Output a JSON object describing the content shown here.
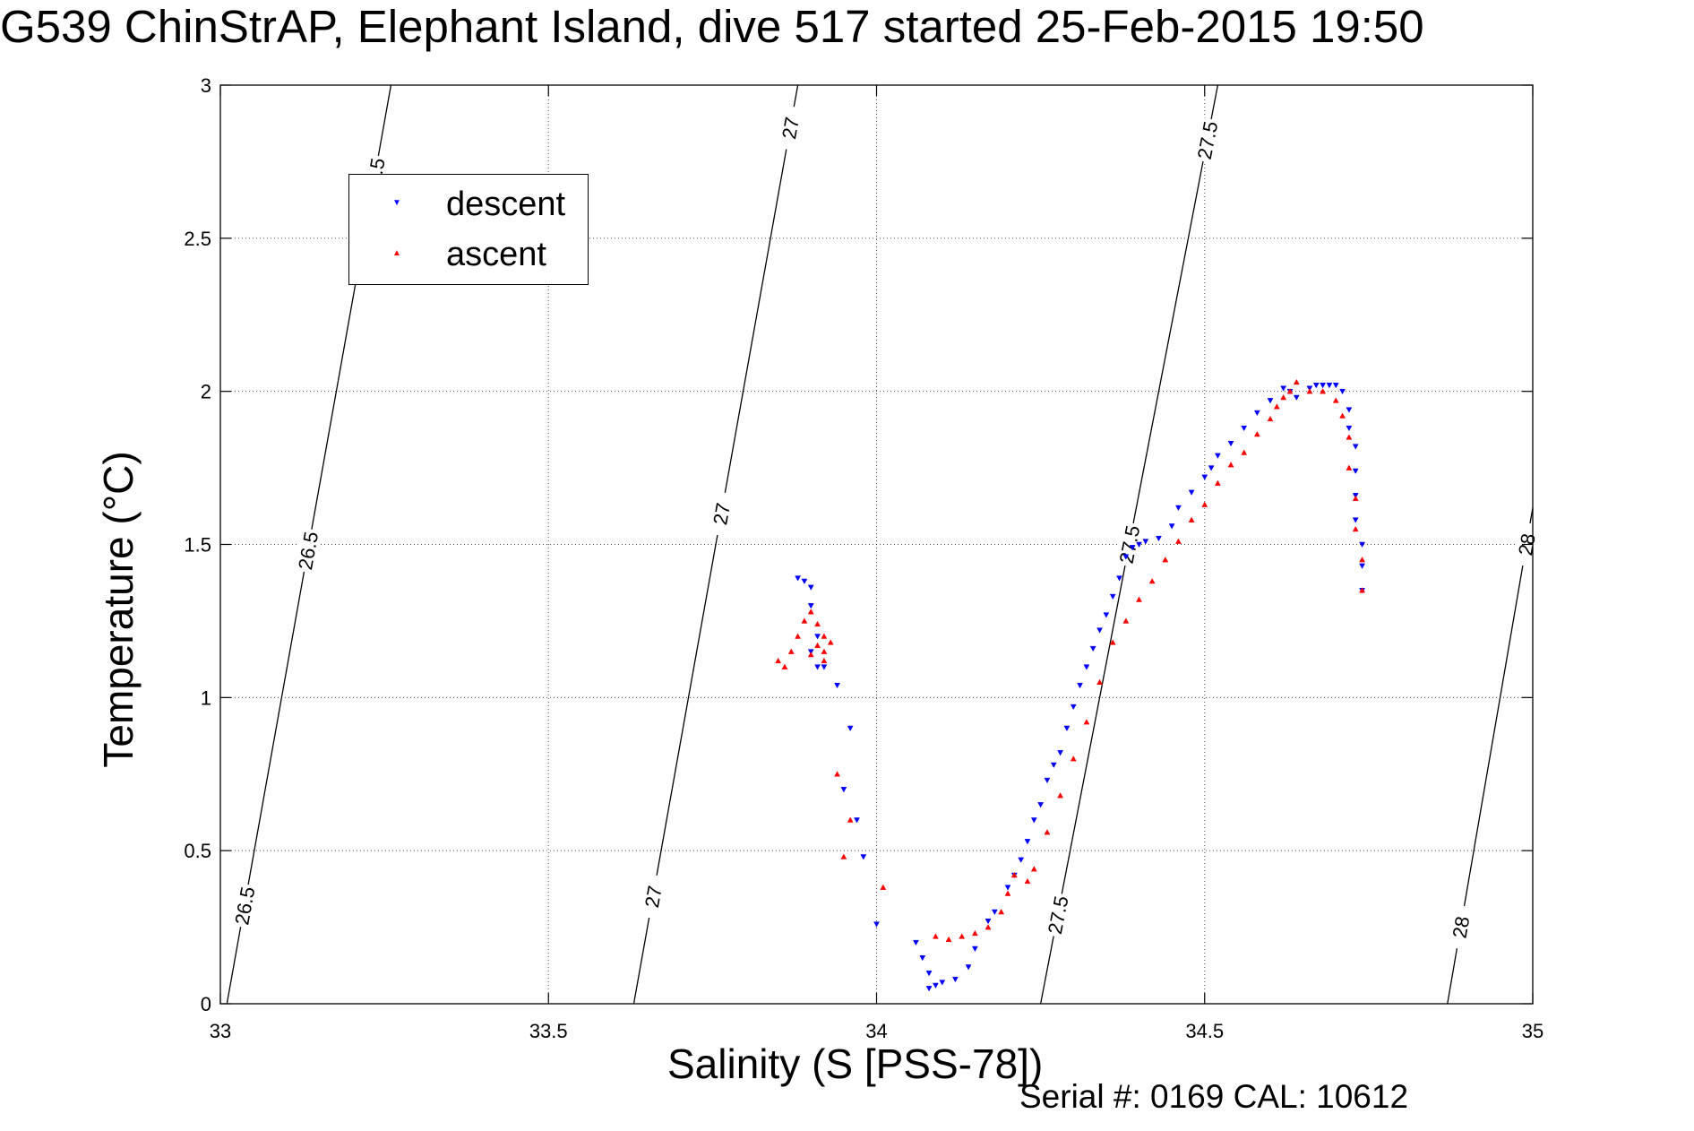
{
  "title": "G539 ChinStrAP, Elephant Island, dive 517 started 25-Feb-2015 19:50",
  "footer": "Serial #: 0169 CAL: 10612",
  "colors": {
    "descent": "#0000ff",
    "ascent": "#ff0000",
    "axis": "#000000",
    "grid": "#000000"
  },
  "chart_data": {
    "type": "scatter",
    "title": "G539 ChinStrAP, Elephant Island, dive 517 started 25-Feb-2015 19:50",
    "xlabel": "Salinity (S [PSS-78])",
    "ylabel": "Temperature (°C)",
    "xlim": [
      33,
      35
    ],
    "ylim": [
      0,
      3
    ],
    "xticks": [
      33,
      33.5,
      34,
      34.5,
      35
    ],
    "xtick_labels": [
      "33",
      "33.5",
      "34",
      "34.5",
      "35"
    ],
    "yticks": [
      0,
      0.5,
      1,
      1.5,
      2,
      2.5,
      3
    ],
    "ytick_labels": [
      "0",
      "0.5",
      "1",
      "1.5",
      "2",
      "2.5",
      "3"
    ],
    "grid": true,
    "legend_position": "top-left",
    "series": [
      {
        "name": "descent",
        "marker": "triangle-down",
        "x": [
          33.88,
          33.89,
          33.9,
          33.9,
          33.91,
          33.9,
          33.91,
          33.92,
          33.94,
          33.96,
          33.95,
          33.97,
          33.98,
          34.0,
          34.06,
          34.07,
          34.08,
          34.08,
          34.09,
          34.1,
          34.12,
          34.14,
          34.15,
          34.17,
          34.18,
          34.2,
          34.21,
          34.22,
          34.23,
          34.24,
          34.25,
          34.26,
          34.27,
          34.28,
          34.29,
          34.3,
          34.31,
          34.32,
          34.33,
          34.34,
          34.35,
          34.36,
          34.37,
          34.38,
          34.39,
          34.4,
          34.41,
          34.43,
          34.45,
          34.46,
          34.48,
          34.5,
          34.51,
          34.52,
          34.54,
          34.56,
          34.58,
          34.6,
          34.62,
          34.63,
          34.64,
          34.66,
          34.67,
          34.68,
          34.69,
          34.7,
          34.71,
          34.72,
          34.72,
          34.73,
          34.73,
          34.73,
          34.73,
          34.74,
          34.74,
          34.74
        ],
        "y": [
          1.39,
          1.38,
          1.36,
          1.3,
          1.2,
          1.15,
          1.1,
          1.1,
          1.04,
          0.9,
          0.7,
          0.6,
          0.48,
          0.26,
          0.2,
          0.15,
          0.1,
          0.05,
          0.06,
          0.07,
          0.08,
          0.12,
          0.18,
          0.27,
          0.3,
          0.38,
          0.42,
          0.47,
          0.53,
          0.6,
          0.65,
          0.73,
          0.78,
          0.82,
          0.9,
          0.97,
          1.04,
          1.1,
          1.16,
          1.22,
          1.27,
          1.33,
          1.39,
          1.46,
          1.49,
          1.5,
          1.51,
          1.52,
          1.56,
          1.62,
          1.67,
          1.72,
          1.75,
          1.79,
          1.83,
          1.88,
          1.93,
          1.97,
          2.01,
          2.0,
          1.98,
          2.01,
          2.02,
          2.02,
          2.02,
          2.02,
          2.0,
          1.94,
          1.88,
          1.82,
          1.74,
          1.66,
          1.58,
          1.5,
          1.43,
          1.35
        ]
      },
      {
        "name": "ascent",
        "marker": "triangle-up",
        "x": [
          33.85,
          33.86,
          33.87,
          33.88,
          33.89,
          33.9,
          33.91,
          33.92,
          33.91,
          33.9,
          33.92,
          33.93,
          33.92,
          33.94,
          33.96,
          33.95,
          34.01,
          34.09,
          34.11,
          34.13,
          34.15,
          34.17,
          34.19,
          34.2,
          34.21,
          34.23,
          34.24,
          34.26,
          34.28,
          34.3,
          34.32,
          34.34,
          34.36,
          34.38,
          34.4,
          34.42,
          34.44,
          34.46,
          34.48,
          34.5,
          34.52,
          34.54,
          34.56,
          34.58,
          34.6,
          34.61,
          34.62,
          34.63,
          34.64,
          34.66,
          34.68,
          34.7,
          34.71,
          34.72,
          34.72,
          34.73,
          34.73,
          34.74,
          34.74
        ],
        "y": [
          1.12,
          1.1,
          1.15,
          1.2,
          1.25,
          1.28,
          1.24,
          1.2,
          1.17,
          1.14,
          1.15,
          1.18,
          1.12,
          0.75,
          0.6,
          0.48,
          0.38,
          0.22,
          0.21,
          0.22,
          0.23,
          0.25,
          0.3,
          0.36,
          0.42,
          0.4,
          0.44,
          0.56,
          0.68,
          0.8,
          0.92,
          1.05,
          1.18,
          1.25,
          1.32,
          1.38,
          1.45,
          1.51,
          1.58,
          1.63,
          1.7,
          1.76,
          1.8,
          1.86,
          1.91,
          1.95,
          1.98,
          2.0,
          2.03,
          2.0,
          2.0,
          1.97,
          1.92,
          1.85,
          1.75,
          1.65,
          1.55,
          1.45,
          1.35
        ]
      }
    ],
    "contours": [
      {
        "label": "26.5",
        "start": [
          33.01,
          0
        ],
        "end": [
          33.26,
          3
        ],
        "label_positions": [
          0.32,
          1.48,
          2.7
        ]
      },
      {
        "label": "27",
        "start": [
          33.63,
          0
        ],
        "end": [
          33.88,
          3
        ],
        "label_positions": [
          0.35,
          1.6,
          2.86
        ]
      },
      {
        "label": "27.5",
        "start": [
          34.25,
          0
        ],
        "end": [
          34.52,
          3
        ],
        "label_positions": [
          0.29,
          1.5,
          2.82
        ]
      },
      {
        "label": "28",
        "start": [
          34.87,
          0
        ],
        "end": [
          35.0,
          1.62
        ],
        "label_positions": [
          0.25,
          1.5
        ]
      }
    ]
  }
}
